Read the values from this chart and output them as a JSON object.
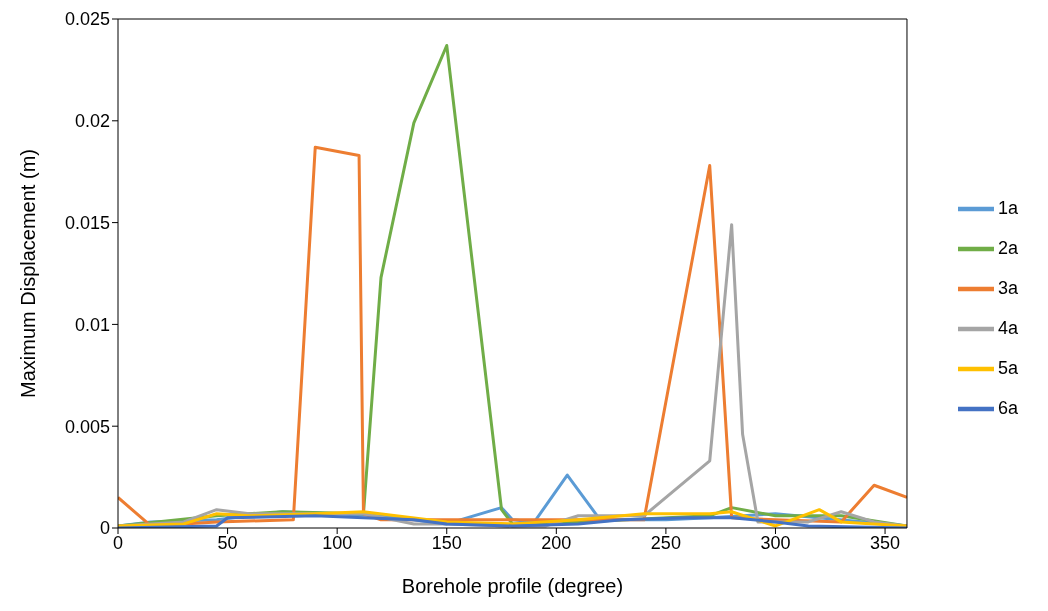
{
  "chart_data": {
    "type": "line",
    "xlabel": "Borehole profile (degree)",
    "ylabel": "Maximum Displacement (m)",
    "xlim": [
      0,
      360
    ],
    "xticks": [
      0,
      50,
      100,
      150,
      200,
      250,
      300,
      350
    ],
    "ylim": [
      0,
      0.025
    ],
    "yticks": [
      0,
      0.005,
      0.01,
      0.015,
      0.02,
      0.025
    ],
    "grid": false,
    "legend": "right",
    "marker": "none",
    "line_style": "solid",
    "series": [
      {
        "name": "1a",
        "color": "#5b9bd5",
        "x": [
          0,
          15,
          45,
          75,
          120,
          150,
          175,
          180,
          190,
          205,
          220,
          250,
          270,
          300,
          360
        ],
        "values": [
          0.0001,
          0.0003,
          0.0004,
          0.0008,
          0.0006,
          0.0002,
          0.001,
          0.0004,
          0.0003,
          0.0026,
          0.0004,
          0.0004,
          0.0005,
          0.0007,
          0.0001
        ]
      },
      {
        "name": "2a",
        "color": "#70ad47",
        "x": [
          0,
          45,
          75,
          112,
          120,
          135,
          150,
          175,
          180,
          210,
          270,
          280,
          300,
          330,
          360
        ],
        "values": [
          0.0001,
          0.0006,
          0.0008,
          0.0007,
          0.0123,
          0.0199,
          0.0237,
          0.0009,
          0.0002,
          0.0003,
          0.0006,
          0.001,
          0.0006,
          0.0006,
          0.0001
        ]
      },
      {
        "name": "3a",
        "color": "#ed7d31",
        "x": [
          0,
          15,
          45,
          80,
          90,
          110,
          112,
          120,
          240,
          270,
          280,
          300,
          330,
          345,
          360
        ],
        "values": [
          0.0015,
          0.0001,
          0.0003,
          0.0004,
          0.0187,
          0.0183,
          0.0007,
          0.0004,
          0.0004,
          0.0178,
          0.0005,
          0.0004,
          0.0003,
          0.0021,
          0.0015
        ]
      },
      {
        "name": "4a",
        "color": "#a5a5a5",
        "x": [
          0,
          30,
          45,
          60,
          90,
          112,
          135,
          150,
          180,
          195,
          210,
          240,
          270,
          280,
          285,
          292,
          315,
          330,
          345,
          360
        ],
        "values": [
          0.0001,
          0.0003,
          0.0009,
          0.0007,
          0.0007,
          0.0007,
          0.0002,
          0.0002,
          0.0001,
          0.0001,
          0.0006,
          0.0006,
          0.0033,
          0.0149,
          0.0046,
          0.0003,
          0.0003,
          0.0008,
          0.0003,
          0.0001
        ]
      },
      {
        "name": "5a",
        "color": "#ffc000",
        "x": [
          0,
          30,
          45,
          60,
          90,
          112,
          150,
          180,
          210,
          240,
          270,
          280,
          300,
          320,
          330,
          360
        ],
        "values": [
          0.0001,
          0.0002,
          0.0007,
          0.0006,
          0.0007,
          0.0008,
          0.0003,
          0.0002,
          0.0004,
          0.0007,
          0.0007,
          0.0008,
          0.0001,
          0.0009,
          0.0003,
          0.0001
        ]
      },
      {
        "name": "6a",
        "color": "#4472c4",
        "x": [
          0,
          45,
          50,
          90,
          112,
          135,
          150,
          180,
          210,
          230,
          260,
          280,
          300,
          315,
          360
        ],
        "values": [
          0,
          0.0001,
          0.0005,
          0.0006,
          0.0005,
          0.0004,
          0.0002,
          0.0001,
          0.0002,
          0.0004,
          0.0005,
          0.0005,
          0.0003,
          0.0001,
          0
        ]
      }
    ]
  }
}
